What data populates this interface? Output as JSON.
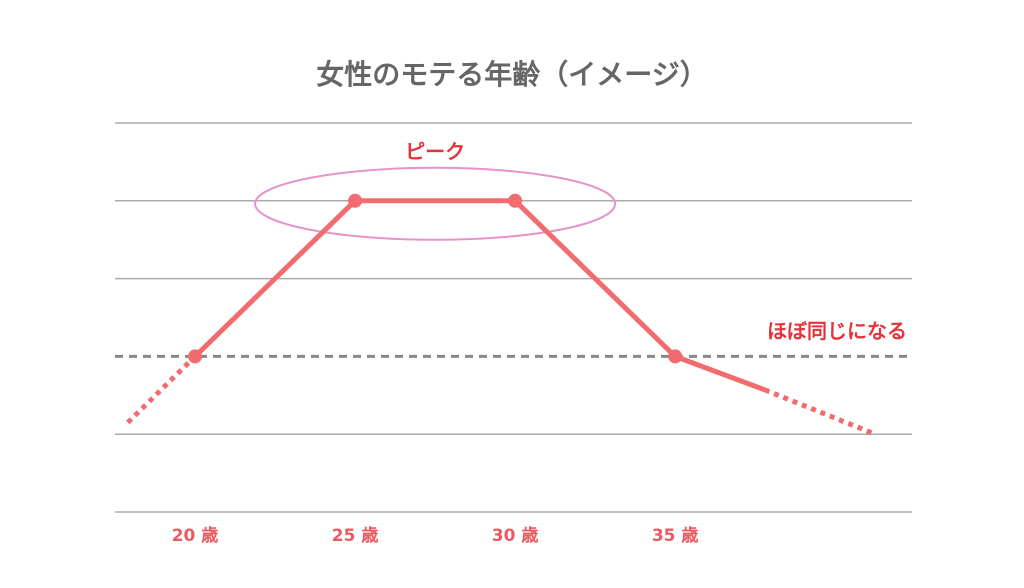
{
  "chart_data": {
    "type": "line",
    "title": "女性のモテる年齢（イメージ）",
    "xlim": [
      17.5,
      42.4
    ],
    "xticks": [
      {
        "value": 20,
        "label": "20 歳"
      },
      {
        "value": 25,
        "label": "25 歳"
      },
      {
        "value": 30,
        "label": "30 歳"
      },
      {
        "value": 35,
        "label": "35 歳"
      }
    ],
    "ylim": [
      0,
      5
    ],
    "yticks": [
      0,
      1,
      3,
      4,
      5
    ],
    "grid": true,
    "series": [
      {
        "color": "#f26b6e",
        "style": "solid",
        "markers": true,
        "x": [
          20,
          25,
          30,
          35
        ],
        "values": [
          2,
          4,
          4,
          2
        ]
      },
      {
        "color": "#f26b6e",
        "style": "solid",
        "markers": false,
        "x": [
          35,
          37.8
        ],
        "values": [
          2,
          1.57
        ]
      },
      {
        "color": "#f26b6e",
        "style": "dotted",
        "markers": false,
        "x": [
          17.9,
          20
        ],
        "values": [
          1.15,
          2
        ]
      },
      {
        "color": "#f26b6e",
        "style": "dotted",
        "markers": false,
        "x": [
          37.8,
          41.25
        ],
        "values": [
          1.57,
          1
        ]
      }
    ],
    "reference_line": {
      "value": 2,
      "label": "ほぼ同じになる",
      "color": "#888888"
    },
    "peak_annotation": {
      "text": "ピーク",
      "x": [
        25,
        30
      ],
      "value": 4,
      "color": "#e893c8"
    }
  }
}
